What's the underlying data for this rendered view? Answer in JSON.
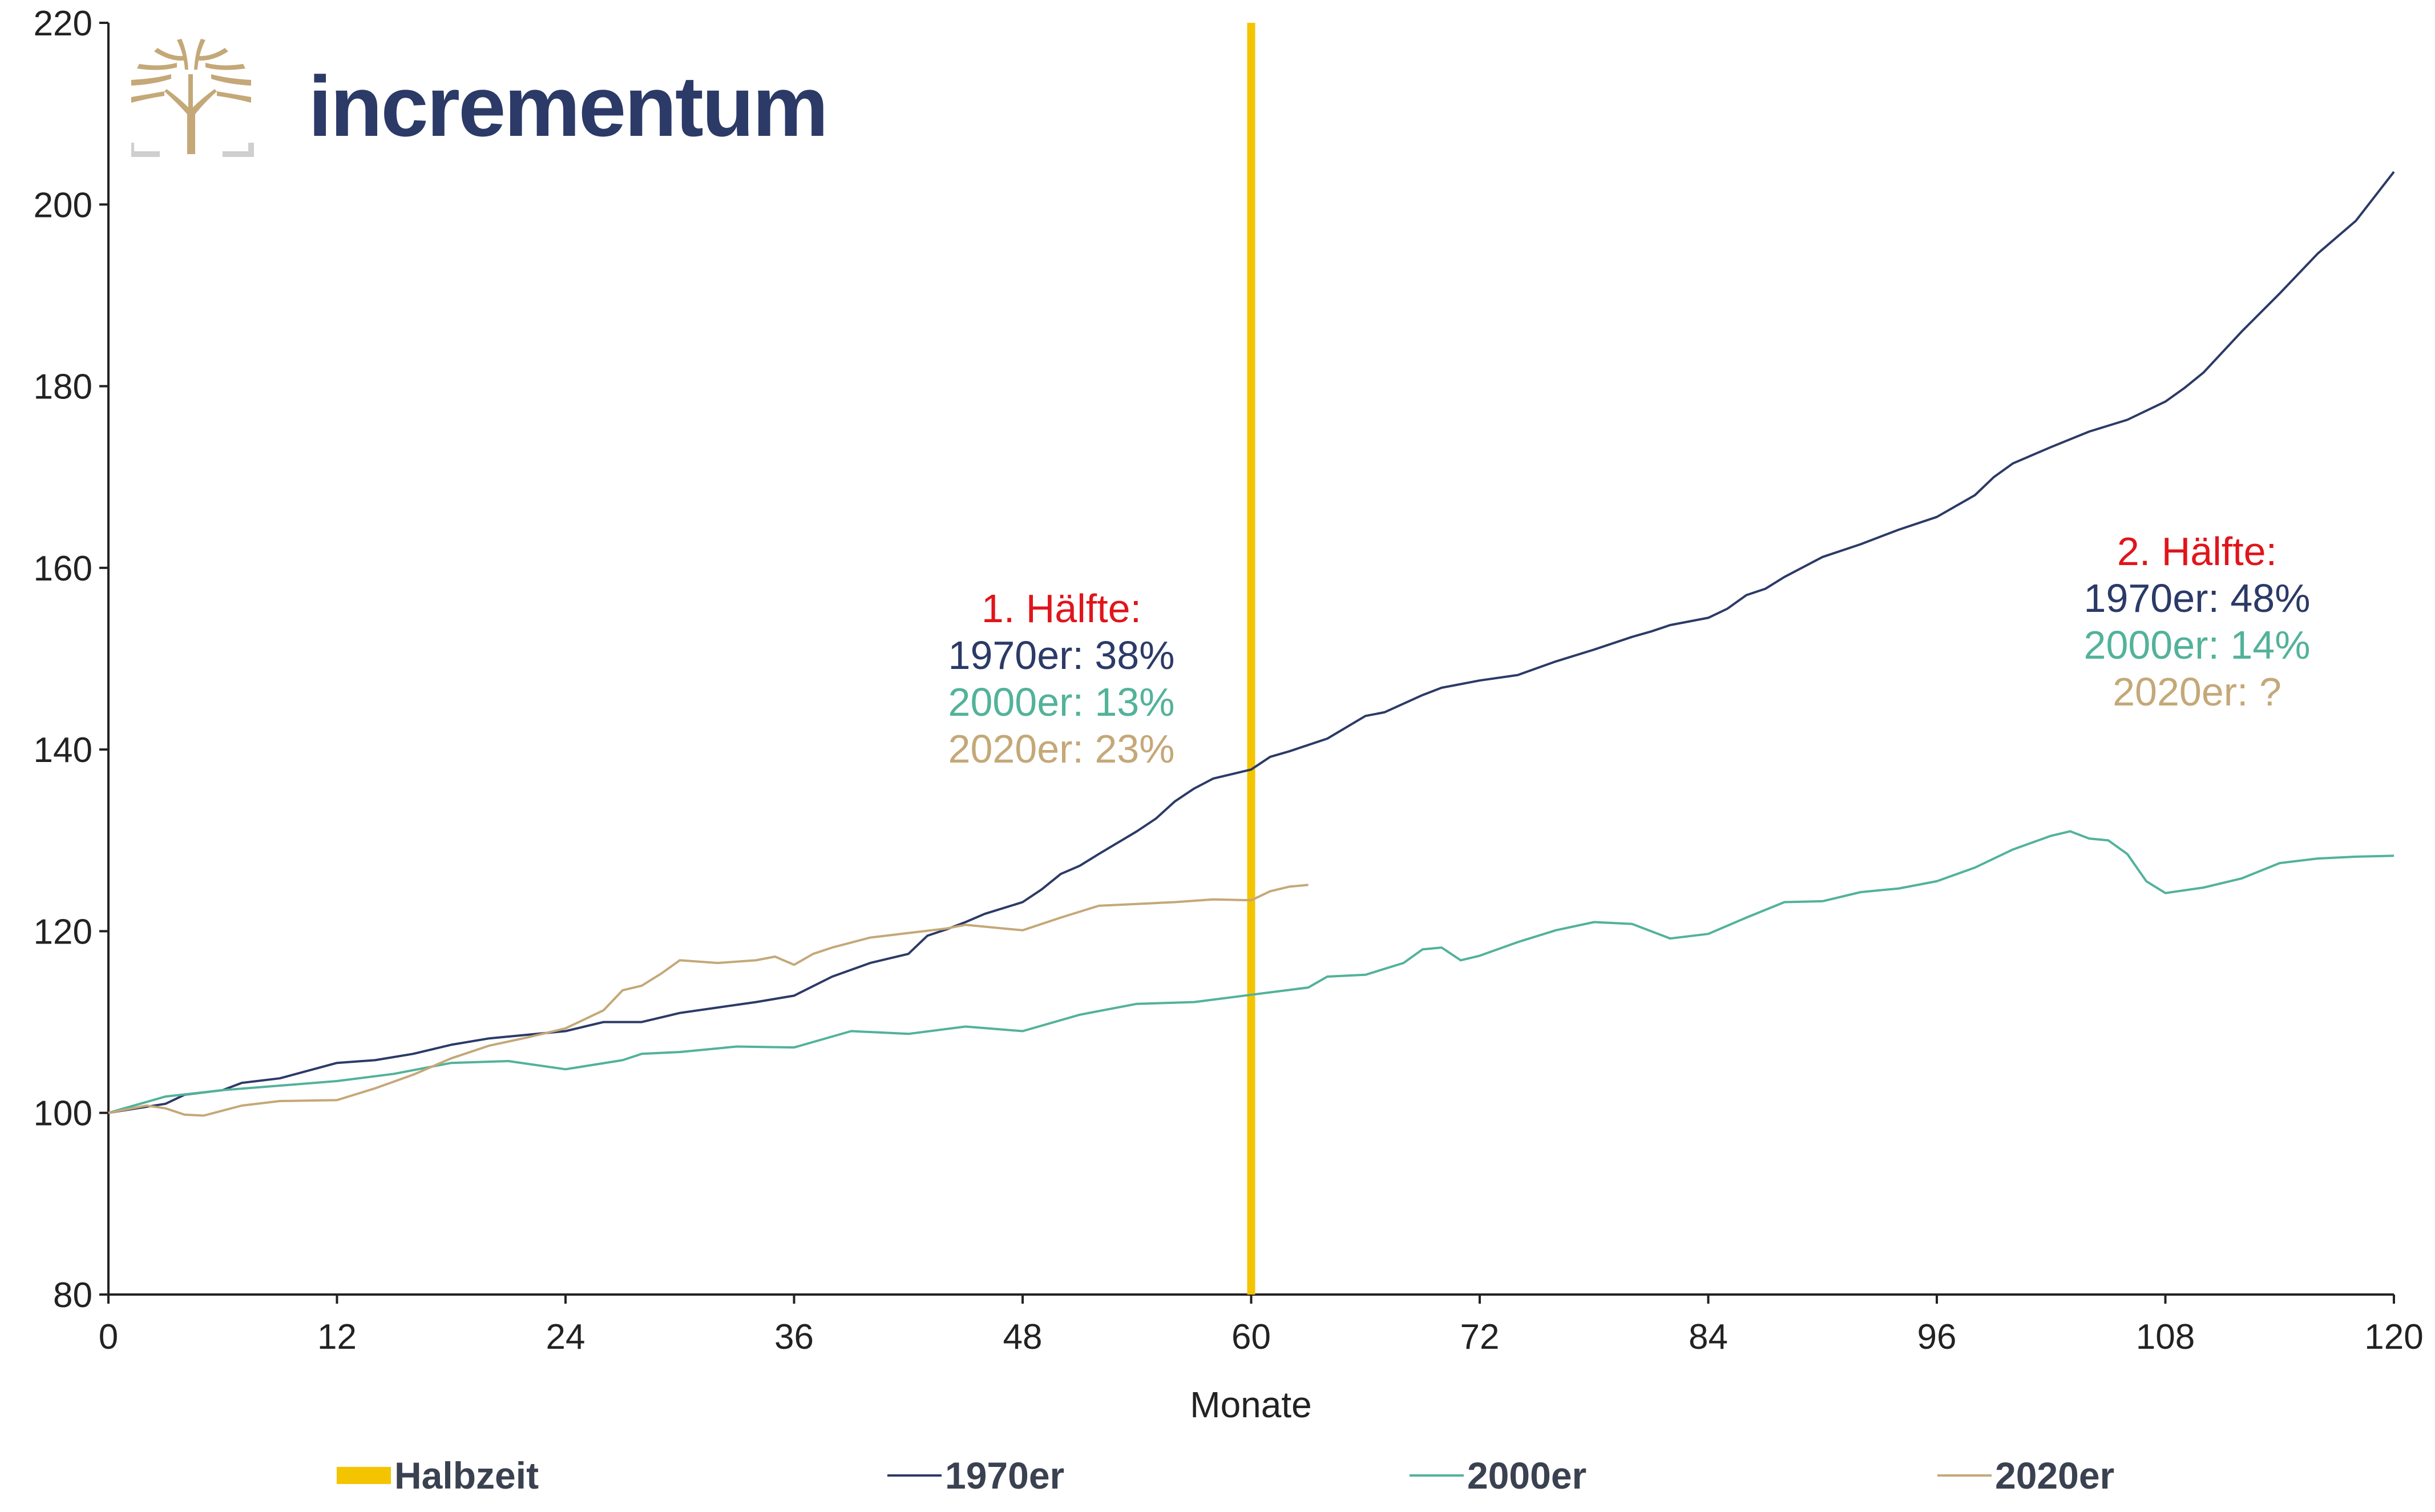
{
  "brand": {
    "name": "incrementum"
  },
  "colors": {
    "halbzeit": "#f5c400",
    "s1970": "#2b3a67",
    "s2000": "#52b29a",
    "s2020": "#c4a878",
    "highlight": "#e0151b",
    "axis": "#222222"
  },
  "annotations": {
    "first": {
      "heading": "1. Hälfte:",
      "l1970": "1970er: 38%",
      "l2000": "2000er: 13%",
      "l2020": "2020er: 23%"
    },
    "second": {
      "heading": "2. Hälfte:",
      "l1970": "1970er: 48%",
      "l2000": "2000er: 14%",
      "l2020": "2020er: ?"
    }
  },
  "legend": {
    "halbzeit": "Halbzeit",
    "s1970": "1970er",
    "s2000": "2000er",
    "s2020": "2020er"
  },
  "chart_data": {
    "type": "line",
    "xlabel": "Monate",
    "ylabel": "",
    "xlim": [
      0,
      120
    ],
    "ylim": [
      80,
      220
    ],
    "xticks": [
      0,
      12,
      24,
      36,
      48,
      60,
      72,
      84,
      96,
      108,
      120
    ],
    "yticks": [
      80,
      100,
      120,
      140,
      160,
      180,
      200,
      220
    ],
    "grid": false,
    "legend_position": "bottom",
    "vline": {
      "name": "Halbzeit",
      "x": 60
    },
    "series": [
      {
        "name": "1970er",
        "x": [
          0,
          3,
          4,
          6,
          7,
          9,
          12,
          14,
          16,
          18,
          20,
          22,
          24,
          25,
          26,
          27,
          28,
          30,
          32,
          34,
          36,
          38,
          40,
          42,
          43,
          44,
          45,
          46,
          48,
          49,
          50,
          51,
          52,
          54,
          55,
          56,
          57,
          58,
          60,
          61,
          62,
          64,
          66,
          67,
          69,
          70,
          72,
          74,
          76,
          78,
          80,
          81,
          82,
          84,
          85,
          86,
          87,
          88,
          90,
          92,
          94,
          96,
          98,
          99,
          100,
          102,
          104,
          106,
          108,
          109,
          110,
          112,
          114,
          116,
          118,
          120
        ],
        "values": [
          100,
          101,
          102,
          102.5,
          103.3,
          103.8,
          105.5,
          105.8,
          106.5,
          107.5,
          108.2,
          108.6,
          109,
          109.5,
          110,
          110,
          110,
          111,
          111.6,
          112.2,
          112.9,
          115,
          116.5,
          117.5,
          119.5,
          120.2,
          121,
          121.9,
          123.2,
          124.6,
          126.3,
          127.2,
          128.5,
          131,
          132.4,
          134.3,
          135.7,
          136.8,
          137.8,
          139.2,
          139.8,
          141.2,
          143.7,
          144.1,
          146,
          146.8,
          147.6,
          148.2,
          149.7,
          151,
          152.4,
          153,
          153.7,
          154.5,
          155.5,
          157,
          157.7,
          159,
          161.2,
          162.6,
          164.2,
          165.6,
          168,
          170,
          171.5,
          173.3,
          175,
          176.3,
          178.3,
          179.8,
          181.5,
          186,
          190.2,
          194.6,
          198.2,
          203.6
        ]
      },
      {
        "name": "2000er",
        "x": [
          0,
          3,
          6,
          9,
          12,
          15,
          18,
          21,
          24,
          27,
          28,
          30,
          33,
          36,
          39,
          42,
          45,
          48,
          51,
          54,
          57,
          60,
          63,
          64,
          66,
          68,
          69,
          70,
          71,
          72,
          74,
          76,
          78,
          80,
          82,
          84,
          86,
          88,
          90,
          92,
          94,
          96,
          98,
          100,
          102,
          103,
          104,
          105,
          106,
          107,
          108,
          110,
          112,
          114,
          116,
          118,
          120
        ],
        "values": [
          100,
          101.8,
          102.5,
          103,
          103.5,
          104.3,
          105.5,
          105.7,
          104.8,
          105.8,
          106.5,
          106.7,
          107.3,
          107.2,
          109,
          108.7,
          109.5,
          109,
          110.8,
          112,
          112.2,
          113,
          113.8,
          115,
          115.2,
          116.5,
          118,
          118.2,
          116.8,
          117.3,
          118.8,
          120.1,
          121,
          120.8,
          119.2,
          119.7,
          121.5,
          123.2,
          123.3,
          124.3,
          124.7,
          125.5,
          127,
          129,
          130.5,
          131,
          130.2,
          130,
          128.5,
          125.5,
          124.2,
          124.8,
          125.8,
          127.5,
          128,
          128.2,
          128.3
        ]
      },
      {
        "name": "2020er",
        "x": [
          0,
          2,
          3,
          4,
          5,
          7,
          9,
          12,
          14,
          16,
          18,
          20,
          22,
          24,
          26,
          27,
          28,
          29,
          30,
          32,
          34,
          35,
          36,
          37,
          38,
          40,
          42,
          44,
          45,
          46,
          48,
          50,
          52,
          54,
          56,
          58,
          60,
          61,
          62,
          63
        ],
        "values": [
          100,
          100.8,
          100.5,
          99.8,
          99.7,
          100.8,
          101.3,
          101.4,
          102.7,
          104.2,
          106,
          107.4,
          108.3,
          109.3,
          111.3,
          113.5,
          114,
          115.3,
          116.8,
          116.5,
          116.8,
          117.2,
          116.3,
          117.5,
          118.2,
          119.3,
          119.8,
          120.3,
          120.7,
          120.5,
          120.1,
          121.5,
          122.8,
          123,
          123.2,
          123.5,
          123.4,
          124.4,
          124.9,
          125.1
        ]
      }
    ]
  }
}
